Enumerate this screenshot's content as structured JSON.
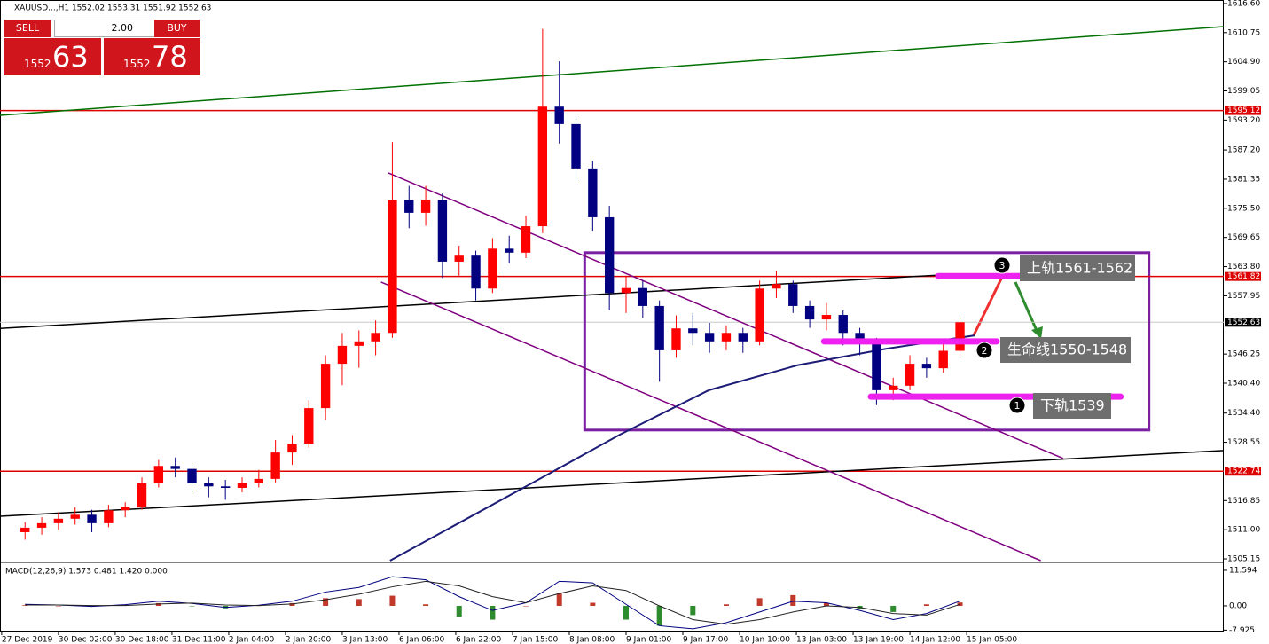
{
  "trade_panel": {
    "sell": "SELL",
    "lot": "2.00",
    "buy": "BUY",
    "bid_big": "1552",
    "bid_small": "63",
    "ask_big": "1552",
    "ask_small": "78"
  },
  "chart_data": [
    {
      "type": "candlestick",
      "title": "XAUUSD...,H1  1552.02 1553.31 1551.92 1552.63",
      "up_color": "#ff0000",
      "down_color": "#000080",
      "xlim": [
        -7.5,
        359
      ],
      "ylim": [
        1504.8,
        1617.3
      ],
      "xticks": [
        {
          "value": -7,
          "label": "27 Dec 2019"
        },
        {
          "value": 10,
          "label": "30 Dec 02:00"
        },
        {
          "value": 27,
          "label": "30 Dec 18:00"
        },
        {
          "value": 44,
          "label": "31 Dec 11:00"
        },
        {
          "value": 61,
          "label": "2 Jan 04:00"
        },
        {
          "value": 78,
          "label": "2 Jan 20:00"
        },
        {
          "value": 95,
          "label": "3 Jan 13:00"
        },
        {
          "value": 112,
          "label": "6 Jan 06:00"
        },
        {
          "value": 129,
          "label": "6 Jan 22:00"
        },
        {
          "value": 146,
          "label": "7 Jan 15:00"
        },
        {
          "value": 163,
          "label": "8 Jan 08:00"
        },
        {
          "value": 180,
          "label": "9 Jan 01:00"
        },
        {
          "value": 197,
          "label": "9 Jan 17:00"
        },
        {
          "value": 214,
          "label": "10 Jan 10:00"
        },
        {
          "value": 231,
          "label": "13 Jan 03:00"
        },
        {
          "value": 248,
          "label": "13 Jan 19:00"
        },
        {
          "value": 265,
          "label": "14 Jan 12:00"
        },
        {
          "value": 282,
          "label": "15 Jan 05:00"
        }
      ],
      "yticks": [
        {
          "value": 1616.6,
          "label": "1616.60"
        },
        1610.75,
        {
          "value": 1604.9,
          "label": "1604.90"
        },
        1599.05,
        {
          "value": 1593.2,
          "label": "1593.20"
        },
        {
          "value": 1587.2,
          "label": "1587.20"
        },
        1581.35,
        {
          "value": 1575.5,
          "label": "1575.50"
        },
        1569.65,
        {
          "value": 1563.8,
          "label": "1563.80"
        },
        1557.95,
        1546.25,
        {
          "value": 1540.4,
          "label": "1540.40"
        },
        {
          "value": 1534.4,
          "label": "1534.40"
        },
        1528.55,
        1516.85,
        {
          "value": 1511.0,
          "label": "1511.00"
        },
        1505.15
      ],
      "x": [
        0,
        5,
        10,
        15,
        20,
        25,
        30,
        35,
        40,
        45,
        50,
        55,
        60,
        65,
        70,
        75,
        80,
        85,
        90,
        95,
        100,
        105,
        110,
        115,
        120,
        125,
        130,
        135,
        140,
        145,
        150,
        155,
        160,
        165,
        170,
        175,
        180,
        185,
        190,
        195,
        200,
        205,
        210,
        215,
        220,
        225,
        230,
        235,
        240,
        245,
        250,
        255,
        260,
        265,
        270,
        275,
        280
      ],
      "ohlc": [
        [
          1510.5,
          1512.5,
          1509.0,
          1511.4
        ],
        [
          1511.4,
          1513.5,
          1510.0,
          1512.3
        ],
        [
          1512.3,
          1514.5,
          1511.0,
          1513.2
        ],
        [
          1513.2,
          1515.5,
          1512.0,
          1514.0
        ],
        [
          1514.0,
          1515.0,
          1510.5,
          1512.3
        ],
        [
          1512.3,
          1516.0,
          1511.5,
          1514.9
        ],
        [
          1514.9,
          1516.5,
          1513.5,
          1515.5
        ],
        [
          1515.5,
          1521.5,
          1515.0,
          1520.3
        ],
        [
          1520.3,
          1525.0,
          1519.5,
          1523.8
        ],
        [
          1523.8,
          1525.5,
          1521.5,
          1523.2
        ],
        [
          1523.2,
          1524.0,
          1518.5,
          1520.3
        ],
        [
          1520.3,
          1521.5,
          1517.5,
          1519.7
        ],
        [
          1519.7,
          1521.0,
          1517.0,
          1519.4
        ],
        [
          1519.4,
          1521.5,
          1518.5,
          1520.3
        ],
        [
          1520.3,
          1523.0,
          1519.5,
          1521.2
        ],
        [
          1521.2,
          1529.0,
          1520.5,
          1526.5
        ],
        [
          1526.5,
          1530.0,
          1524.0,
          1528.3
        ],
        [
          1528.3,
          1537.0,
          1527.5,
          1535.4
        ],
        [
          1535.4,
          1546.0,
          1533.0,
          1544.3
        ],
        [
          1544.3,
          1550.5,
          1540.0,
          1547.9
        ],
        [
          1547.9,
          1551.0,
          1543.5,
          1548.8
        ],
        [
          1548.8,
          1553.0,
          1546.0,
          1550.5
        ],
        [
          1550.5,
          1588.8,
          1549.5,
          1577.2
        ],
        [
          1577.2,
          1580.0,
          1571.5,
          1574.6
        ],
        [
          1574.6,
          1580.0,
          1572.0,
          1577.2
        ],
        [
          1577.2,
          1578.5,
          1561.5,
          1564.8
        ],
        [
          1564.8,
          1568.0,
          1562.0,
          1566.0
        ],
        [
          1566.0,
          1567.0,
          1557.0,
          1559.4
        ],
        [
          1559.4,
          1569.5,
          1558.5,
          1567.4
        ],
        [
          1567.4,
          1570.0,
          1564.5,
          1566.6
        ],
        [
          1566.6,
          1574.0,
          1565.5,
          1571.9
        ],
        [
          1571.9,
          1611.5,
          1570.5,
          1595.9
        ],
        [
          1595.9,
          1605.0,
          1588.5,
          1592.4
        ],
        [
          1592.4,
          1594.0,
          1581.0,
          1583.5
        ],
        [
          1583.5,
          1585.0,
          1571.0,
          1573.7
        ],
        [
          1573.7,
          1576.0,
          1555.0,
          1558.5
        ],
        [
          1558.5,
          1562.0,
          1554.5,
          1559.5
        ],
        [
          1559.5,
          1561.0,
          1553.5,
          1555.9
        ],
        [
          1555.9,
          1557.0,
          1540.7,
          1547.0
        ],
        [
          1547.0,
          1554.0,
          1545.5,
          1551.4
        ],
        [
          1551.4,
          1554.5,
          1548.0,
          1550.5
        ],
        [
          1550.5,
          1552.5,
          1546.5,
          1548.8
        ],
        [
          1548.8,
          1552.0,
          1547.0,
          1550.5
        ],
        [
          1550.5,
          1551.5,
          1546.5,
          1548.8
        ],
        [
          1548.8,
          1561.0,
          1548.0,
          1559.4
        ],
        [
          1559.4,
          1563.0,
          1557.5,
          1560.3
        ],
        [
          1560.3,
          1561.0,
          1554.5,
          1555.9
        ],
        [
          1555.9,
          1557.0,
          1551.5,
          1553.2
        ],
        [
          1553.2,
          1556.5,
          1551.0,
          1554.1
        ],
        [
          1554.1,
          1555.0,
          1548.0,
          1550.5
        ],
        [
          1550.5,
          1551.5,
          1546.0,
          1548.8
        ],
        [
          1548.8,
          1549.5,
          1536.0,
          1539.0
        ],
        [
          1539.0,
          1541.5,
          1537.0,
          1539.9
        ],
        [
          1539.9,
          1546.0,
          1539.0,
          1544.3
        ],
        [
          1544.3,
          1545.5,
          1541.5,
          1543.4
        ],
        [
          1543.4,
          1548.5,
          1542.5,
          1546.9
        ],
        [
          1546.9,
          1553.5,
          1546.0,
          1552.63
        ]
      ],
      "hlines": [
        1595.12,
        1561.82,
        1522.74
      ],
      "hline_color": "#dd0000",
      "current_price": 1552.63,
      "trendlines": [
        {
          "x": [
            -7.5,
            359
          ],
          "y": [
            1594.16,
            1611.96
          ],
          "color": "#007000"
        },
        {
          "x": [
            -7.5,
            273.7
          ],
          "y": [
            1551.4,
            1562.1
          ],
          "color": "#000000"
        },
        {
          "x": [
            -7.5,
            359
          ],
          "y": [
            1513.7,
            1526.9
          ],
          "color": "#000000"
        },
        {
          "x": [
            108.8,
            310.9
          ],
          "y": [
            1582.6,
            1525.3
          ],
          "color": "#800080"
        },
        {
          "x": [
            106.6,
            304.2
          ],
          "y": [
            1560.7,
            1504.8
          ],
          "color": "#800080"
        }
      ],
      "ma": {
        "x": [
          109.3,
          151.7,
          178.2,
          204.8,
          231.3,
          257.8,
          284.4
        ],
        "values": [
          1504.8,
          1520.3,
          1530.1,
          1539.0,
          1544.0,
          1547.3,
          1550.0
        ],
        "color": "#1c1c78"
      },
      "box": {
        "x": [
          167.6,
          336.6
        ],
        "y": [
          1531.0,
          1566.6
        ],
        "color": "#7b1fa2"
      },
      "zones": [
        {
          "x": [
            273.5,
            322.8
          ],
          "y": 1561.9,
          "number": "3",
          "label": "上轨1561-1562"
        },
        {
          "x": [
            239.3,
            291.0
          ],
          "y": 1548.8,
          "number": "2",
          "label": "生命线1550-1548"
        },
        {
          "x": [
            253.3,
            328.1
          ],
          "y": 1537.7,
          "number": "1",
          "label": "下轨1539"
        }
      ],
      "zone_color": "#ee22ee"
    },
    {
      "type": "line",
      "title": "MACD(12,26,9) 1.573 0.481 1.420 0.000",
      "xlim": [
        -7.5,
        359
      ],
      "ylim": [
        -8.4,
        13.6
      ],
      "yticks": [
        11.594,
        {
          "value": 0,
          "label": "0.00"
        },
        -7.925
      ],
      "x": [
        0,
        10,
        20,
        30,
        40,
        50,
        60,
        70,
        80,
        90,
        100,
        110,
        120,
        130,
        140,
        150,
        160,
        170,
        180,
        190,
        200,
        210,
        220,
        230,
        240,
        250,
        260,
        270,
        280
      ],
      "series": [
        {
          "color": "#000080",
          "values": [
            0.5,
            0.3,
            -0.2,
            0.4,
            1.5,
            0.8,
            -0.5,
            0.2,
            1.5,
            4.5,
            6.0,
            9.5,
            8.5,
            3.0,
            -1.5,
            1.0,
            8.0,
            7.5,
            0.5,
            -6.5,
            -7.5,
            -5.5,
            -2.0,
            1.5,
            1.0,
            -1.5,
            -4.5,
            -2.5,
            1.573
          ]
        },
        {
          "color": "#222222",
          "values": [
            0.3,
            0.3,
            0.1,
            0.1,
            0.6,
            0.9,
            0.3,
            0.1,
            0.6,
            2.0,
            3.8,
            6.2,
            8.0,
            6.5,
            3.0,
            1.0,
            4.0,
            6.5,
            5.0,
            0.0,
            -4.5,
            -6.0,
            -4.5,
            -2.0,
            0.0,
            -0.5,
            -2.5,
            -3.0,
            0.481
          ]
        }
      ],
      "histogram": {
        "values": [
          0.2,
          0,
          -0.3,
          0.3,
          0.9,
          -0.1,
          -0.8,
          0.1,
          0.9,
          2.5,
          2.2,
          3.3,
          0.5,
          -3.5,
          -4.5,
          0,
          4,
          1,
          -4.5,
          -6.5,
          -3,
          0.5,
          2.5,
          3.5,
          1,
          -1,
          -2,
          0.5,
          1.1
        ],
        "up_color": "#c0392b",
        "down_color": "#2e8b2e"
      }
    }
  ]
}
